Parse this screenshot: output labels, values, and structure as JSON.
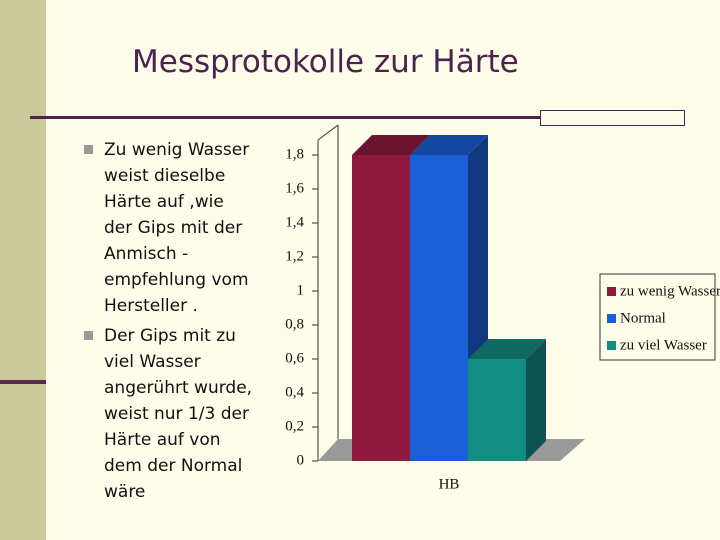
{
  "title": "Messprotokolle zur Härte",
  "bullets": [
    [
      "Zu wenig Wasser",
      "weist dieselbe",
      "Härte auf ,wie",
      "der Gips mit der",
      "Anmisch -",
      "empfehlung vom",
      "Hersteller ."
    ],
    [
      "Der Gips mit zu",
      "viel Wasser",
      "angerührt wurde,",
      "weist nur 1/3 der",
      "Härte auf von",
      "dem der Normal",
      "wäre"
    ]
  ],
  "chart_data": {
    "type": "bar3d",
    "categories": [
      "HB"
    ],
    "series": [
      {
        "name": "zu wenig Wasser",
        "color": "#8e1b3e",
        "values": [
          1.8
        ]
      },
      {
        "name": "Normal",
        "color": "#1a5fd6",
        "values": [
          1.8
        ]
      },
      {
        "name": "zu viel Wasser",
        "color": "#138c84",
        "values": [
          0.6
        ]
      }
    ],
    "ylim": [
      0,
      1.8
    ],
    "yticks": [
      0,
      {
        "value": 0.2,
        "label": "0,2"
      },
      {
        "value": 0.4,
        "label": "0,4"
      },
      {
        "value": 0.6,
        "label": "0,6"
      },
      {
        "value": 0.8,
        "label": "0,8"
      },
      1,
      {
        "value": 1.2,
        "label": "1,2"
      },
      {
        "value": 1.4,
        "label": "1,4"
      },
      {
        "value": 1.6,
        "label": "1,6"
      },
      {
        "value": 1.8,
        "label": "1,8"
      }
    ],
    "legend": "right"
  }
}
